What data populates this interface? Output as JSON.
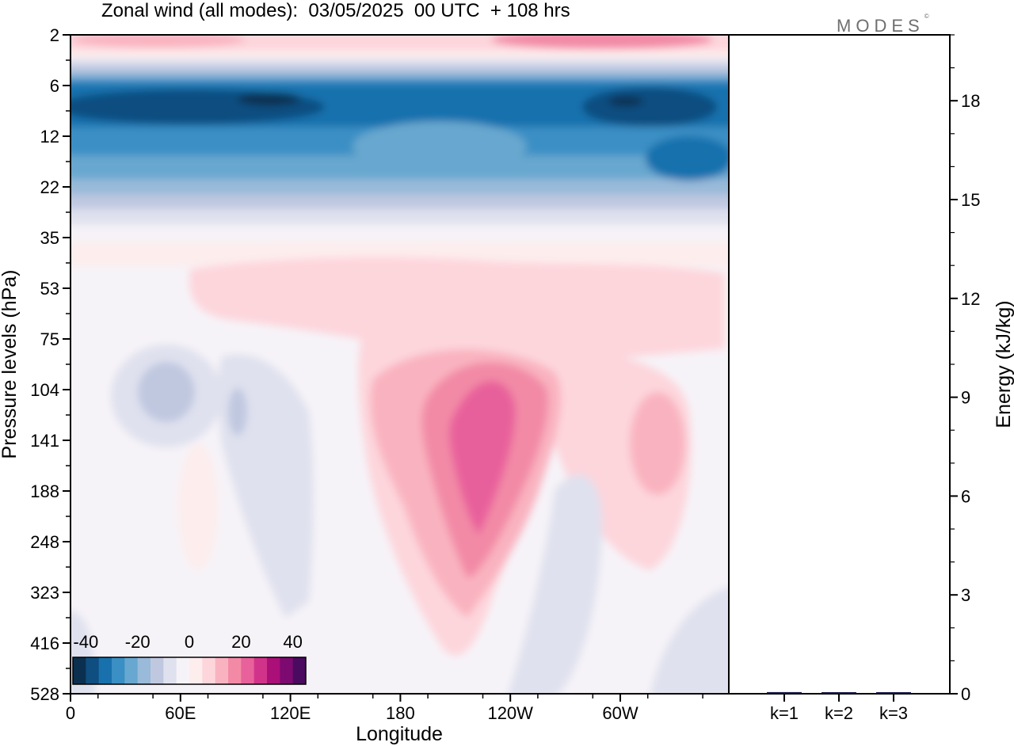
{
  "title": "Zonal wind (all modes):  03/05/2025  00 UTC  + 108 hrs",
  "logo": {
    "text": "MODES",
    "mark": "©"
  },
  "chart_data": [
    {
      "type": "heatmap",
      "xlabel": "Longitude",
      "ylabel": "Pressure levels (hPa)",
      "x_ticks": [
        "0",
        "60E",
        "120E",
        "180",
        "120W",
        "60W"
      ],
      "y_ticks": [
        "2",
        "6",
        "12",
        "22",
        "35",
        "53",
        "75",
        "104",
        "141",
        "188",
        "248",
        "323",
        "416",
        "528"
      ],
      "y_scale": "inverted (pressure decreasing upward)",
      "colorbar": {
        "labels": [
          "-40",
          "-20",
          "0",
          "20",
          "40"
        ],
        "placement": "bottom-left",
        "range": [
          -45,
          45
        ],
        "step": 5,
        "colors": [
          "#0b2f4e",
          "#0f4e80",
          "#1871ad",
          "#3a8fc4",
          "#68a7cf",
          "#99bad9",
          "#c0c8e0",
          "#dfe1ee",
          "#f6f3f8",
          "#fdeded",
          "#fdd6dc",
          "#f9b3c0",
          "#f28aa6",
          "#e8619b",
          "#d2338a",
          "#ab0f78",
          "#7c0a70",
          "#4a0a5f"
        ]
      },
      "field_description_values_m_per_s": {
        "upper_band_easterlies_min": -40,
        "top_westerlies_max": 20,
        "jet_core_max": 30,
        "jet_core_longitude": "150W",
        "jet_core_pressure_hPa": 160
      }
    },
    {
      "type": "bar",
      "ylabel": "Energy (kJ/kg)",
      "categories": [
        "k=1",
        "k=2",
        "k=3"
      ],
      "values": [
        0.05,
        0.02,
        0.02
      ],
      "ylim": [
        0,
        20
      ],
      "y_ticks": [
        "0",
        "3",
        "6",
        "9",
        "12",
        "15",
        "18"
      ]
    }
  ]
}
